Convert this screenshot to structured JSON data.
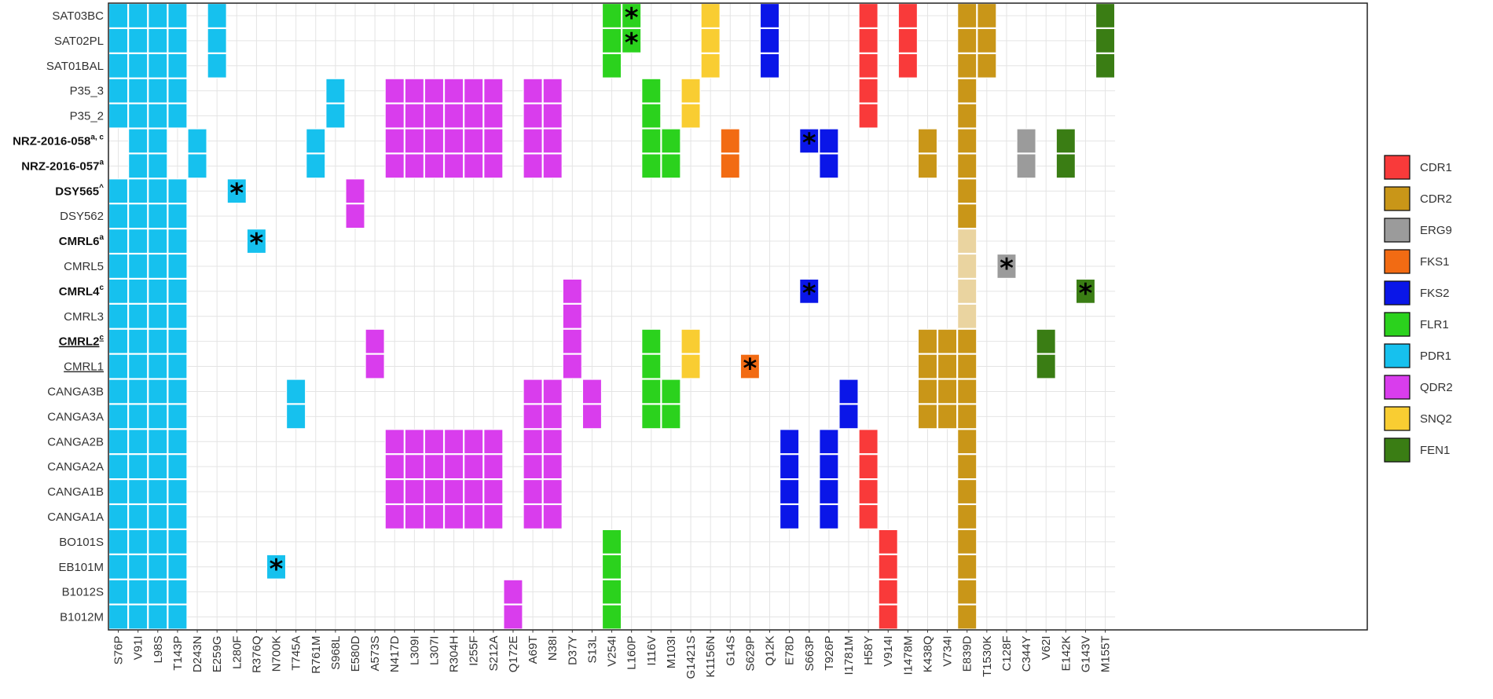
{
  "chart_data": {
    "type": "heatmap",
    "title": "",
    "xlabel": "",
    "ylabel": "",
    "rows": [
      "SAT03BC",
      "SAT02PL",
      "SAT01BAL",
      "P35_3",
      "P35_2",
      "NRZ-2016-058",
      "NRZ-2016-057",
      "DSY565",
      "DSY562",
      "CMRL6",
      "CMRL5",
      "CMRL4",
      "CMRL3",
      "CMRL2",
      "CMRL1",
      "CANGA3B",
      "CANGA3A",
      "CANGA2B",
      "CANGA2A",
      "CANGA1B",
      "CANGA1A",
      "BO101S",
      "EB101M",
      "B1012S",
      "B1012M"
    ],
    "row_superscripts": {
      "NRZ-2016-058": "a, c",
      "NRZ-2016-057": "a",
      "DSY565": "^",
      "CMRL6": "a",
      "CMRL4": "c",
      "CMRL2": "c"
    },
    "row_bold": [
      "NRZ-2016-058",
      "NRZ-2016-057",
      "DSY565",
      "CMRL6",
      "CMRL4",
      "CMRL2"
    ],
    "row_underline": [
      "CMRL2",
      "CMRL1"
    ],
    "columns": [
      "S76P",
      "V91I",
      "L98S",
      "T143P",
      "D243N",
      "E259G",
      "L280F",
      "R376Q",
      "N700K",
      "T745A",
      "R761M",
      "S968L",
      "E580D",
      "A573S",
      "N417D",
      "L309I",
      "L307I",
      "R304H",
      "I255F",
      "S212A",
      "Q172E",
      "A69T",
      "N38I",
      "D37Y",
      "S13L",
      "V254I",
      "L160P",
      "I116V",
      "M103I",
      "G1421S",
      "K1156N",
      "G14S",
      "S629P",
      "Q12K",
      "E78D",
      "S663P",
      "T926P",
      "I1781M",
      "H58Y",
      "V914I",
      "I1478M",
      "K438Q",
      "V734I",
      "E839D",
      "T1530K",
      "C128F",
      "C344Y",
      "V62I",
      "E142K",
      "G143V",
      "M155T"
    ],
    "column_gene": [
      "PDR1",
      "PDR1",
      "PDR1",
      "PDR1",
      "PDR1",
      "PDR1",
      "PDR1",
      "PDR1",
      "PDR1",
      "PDR1",
      "PDR1",
      "PDR1",
      "QDR2",
      "QDR2",
      "QDR2",
      "QDR2",
      "QDR2",
      "QDR2",
      "QDR2",
      "QDR2",
      "QDR2",
      "QDR2",
      "QDR2",
      "QDR2",
      "QDR2",
      "FLR1",
      "FLR1",
      "FLR1",
      "FLR1",
      "SNQ2",
      "SNQ2",
      "FKS1",
      "FKS1",
      "FKS2",
      "FKS2",
      "FKS2",
      "FKS2",
      "FKS2",
      "CDR1",
      "CDR1",
      "CDR1",
      "CDR2",
      "CDR2",
      "CDR2",
      "CDR2",
      "ERG9",
      "ERG9",
      "FEN1",
      "FEN1",
      "FEN1",
      "FEN1"
    ],
    "gene_colors": {
      "CDR1": "#f93a3a",
      "CDR2": "#c99618",
      "ERG9": "#9b9b9b",
      "FKS1": "#f26b13",
      "FKS2": "#0a16e8",
      "FLR1": "#2bd21d",
      "PDR1": "#16c1ee",
      "QDR2": "#d93ded",
      "SNQ2": "#f9cd32",
      "FEN1": "#3a7d14"
    },
    "legend": [
      "CDR1",
      "CDR2",
      "ERG9",
      "FKS1",
      "FKS2",
      "FLR1",
      "PDR1",
      "QDR2",
      "SNQ2",
      "FEN1"
    ],
    "legend_position": "right",
    "light_cell_color": "#ead4a0",
    "cells": {
      "SAT03BC": [
        "S76P",
        "V91I",
        "L98S",
        "T143P",
        "E259G",
        "V254I",
        "L160P",
        "K1156N",
        "Q12K",
        "H58Y",
        "I1478M",
        "E839D",
        "T1530K",
        "M155T"
      ],
      "SAT02PL": [
        "S76P",
        "V91I",
        "L98S",
        "T143P",
        "E259G",
        "V254I",
        "L160P",
        "K1156N",
        "Q12K",
        "H58Y",
        "I1478M",
        "E839D",
        "T1530K",
        "M155T"
      ],
      "SAT01BAL": [
        "S76P",
        "V91I",
        "L98S",
        "T143P",
        "E259G",
        "V254I",
        "K1156N",
        "Q12K",
        "H58Y",
        "I1478M",
        "E839D",
        "T1530K",
        "M155T"
      ],
      "P35_3": [
        "S76P",
        "V91I",
        "L98S",
        "T143P",
        "S968L",
        "N417D",
        "L309I",
        "L307I",
        "R304H",
        "I255F",
        "S212A",
        "A69T",
        "N38I",
        "I116V",
        "G1421S",
        "H58Y",
        "E839D"
      ],
      "P35_2": [
        "S76P",
        "V91I",
        "L98S",
        "T143P",
        "S968L",
        "N417D",
        "L309I",
        "L307I",
        "R304H",
        "I255F",
        "S212A",
        "A69T",
        "N38I",
        "I116V",
        "G1421S",
        "H58Y",
        "E839D"
      ],
      "NRZ-2016-058": [
        "V91I",
        "L98S",
        "D243N",
        "R761M",
        "N417D",
        "L309I",
        "L307I",
        "R304H",
        "I255F",
        "S212A",
        "A69T",
        "N38I",
        "I116V",
        "M103I",
        "G14S",
        "S663P",
        "T926P",
        "K438Q",
        "E839D",
        "C344Y",
        "E142K"
      ],
      "NRZ-2016-057": [
        "V91I",
        "L98S",
        "D243N",
        "R761M",
        "N417D",
        "L309I",
        "L307I",
        "R304H",
        "I255F",
        "S212A",
        "A69T",
        "N38I",
        "I116V",
        "M103I",
        "G14S",
        "T926P",
        "K438Q",
        "E839D",
        "C344Y",
        "E142K"
      ],
      "DSY565": [
        "S76P",
        "V91I",
        "L98S",
        "T143P",
        "L280F",
        "E580D",
        "E839D"
      ],
      "DSY562": [
        "S76P",
        "V91I",
        "L98S",
        "T143P",
        "E580D",
        "E839D"
      ],
      "CMRL6": [
        "S76P",
        "V91I",
        "L98S",
        "T143P",
        "R376Q",
        "E839D"
      ],
      "CMRL5": [
        "S76P",
        "V91I",
        "L98S",
        "T143P",
        "C128F"
      ],
      "CMRL4": [
        "S76P",
        "V91I",
        "L98S",
        "T143P",
        "D37Y",
        "S663P",
        "G143V"
      ],
      "CMRL3": [
        "S76P",
        "V91I",
        "L98S",
        "T143P",
        "D37Y"
      ],
      "CMRL2": [
        "S76P",
        "V91I",
        "L98S",
        "T143P",
        "A573S",
        "D37Y",
        "I116V",
        "G1421S",
        "K438Q",
        "V734I",
        "E839D",
        "V62I"
      ],
      "CMRL1": [
        "S76P",
        "V91I",
        "L98S",
        "T143P",
        "A573S",
        "D37Y",
        "I116V",
        "G1421S",
        "S629P",
        "K438Q",
        "V734I",
        "E839D",
        "V62I"
      ],
      "CANGA3B": [
        "S76P",
        "V91I",
        "L98S",
        "T143P",
        "T745A",
        "A69T",
        "N38I",
        "S13L",
        "I116V",
        "M103I",
        "I1781M",
        "K438Q",
        "V734I",
        "E839D"
      ],
      "CANGA3A": [
        "S76P",
        "V91I",
        "L98S",
        "T143P",
        "T745A",
        "A69T",
        "N38I",
        "S13L",
        "I116V",
        "M103I",
        "I1781M",
        "K438Q",
        "V734I",
        "E839D"
      ],
      "CANGA2B": [
        "S76P",
        "V91I",
        "L98S",
        "T143P",
        "N417D",
        "L309I",
        "L307I",
        "R304H",
        "I255F",
        "S212A",
        "A69T",
        "N38I",
        "E78D",
        "T926P",
        "H58Y",
        "E839D"
      ],
      "CANGA2A": [
        "S76P",
        "V91I",
        "L98S",
        "T143P",
        "N417D",
        "L309I",
        "L307I",
        "R304H",
        "I255F",
        "S212A",
        "A69T",
        "N38I",
        "E78D",
        "T926P",
        "H58Y",
        "E839D"
      ],
      "CANGA1B": [
        "S76P",
        "V91I",
        "L98S",
        "T143P",
        "N417D",
        "L309I",
        "L307I",
        "R304H",
        "I255F",
        "S212A",
        "A69T",
        "N38I",
        "E78D",
        "T926P",
        "H58Y",
        "E839D"
      ],
      "CANGA1A": [
        "S76P",
        "V91I",
        "L98S",
        "T143P",
        "N417D",
        "L309I",
        "L307I",
        "R304H",
        "I255F",
        "S212A",
        "A69T",
        "N38I",
        "E78D",
        "T926P",
        "H58Y",
        "E839D"
      ],
      "BO101S": [
        "S76P",
        "V91I",
        "L98S",
        "T143P",
        "V254I",
        "V914I",
        "E839D"
      ],
      "EB101M": [
        "S76P",
        "V91I",
        "L98S",
        "T143P",
        "N700K",
        "V254I",
        "V914I",
        "E839D"
      ],
      "B1012S": [
        "S76P",
        "V91I",
        "L98S",
        "T143P",
        "Q172E",
        "V254I",
        "V914I",
        "E839D"
      ],
      "B1012M": [
        "S76P",
        "V91I",
        "L98S",
        "T143P",
        "Q172E",
        "V254I",
        "V914I",
        "E839D"
      ]
    },
    "light_cells": [
      [
        "CMRL6",
        "E839D"
      ],
      [
        "CMRL5",
        "E839D"
      ],
      [
        "CMRL4",
        "E839D"
      ],
      [
        "CMRL3",
        "E839D"
      ]
    ],
    "star_cells": [
      [
        "SAT03BC",
        "L160P"
      ],
      [
        "SAT02PL",
        "L160P"
      ],
      [
        "NRZ-2016-058",
        "S663P"
      ],
      [
        "DSY565",
        "L280F"
      ],
      [
        "CMRL6",
        "R376Q"
      ],
      [
        "CMRL5",
        "C128F"
      ],
      [
        "CMRL4",
        "S663P"
      ],
      [
        "CMRL4",
        "G143V"
      ],
      [
        "CMRL1",
        "S629P"
      ],
      [
        "EB101M",
        "N700K"
      ]
    ],
    "star_symbol": "*"
  }
}
